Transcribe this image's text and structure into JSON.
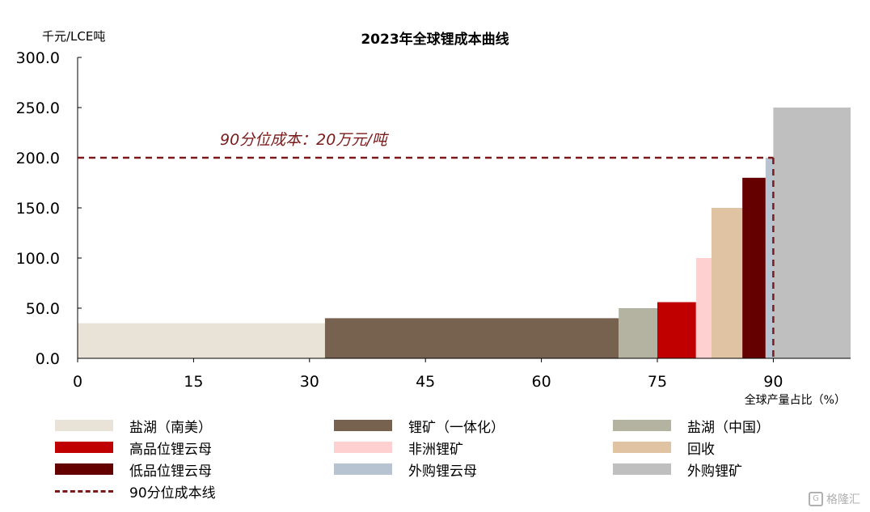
{
  "chart_data": {
    "type": "bar",
    "title": "2023年全球锂成本曲线",
    "ylabel": "千元/LCE吨",
    "xlabel": "全球产量占比（%）",
    "xlim": [
      0,
      100
    ],
    "ylim": [
      0,
      300
    ],
    "x_ticks": [
      "0",
      "15",
      "30",
      "45",
      "60",
      "75",
      "90"
    ],
    "y_ticks": [
      "0.0",
      "50.0",
      "100.0",
      "150.0",
      "200.0",
      "250.0",
      "300.0"
    ],
    "grid": false,
    "legend_position": "bottom",
    "series": [
      {
        "name": "盐湖（南美）",
        "color": "#e8e3d6",
        "x_start": 0,
        "x_end": 32,
        "value": 35
      },
      {
        "name": "锂矿（一体化）",
        "color": "#76624f",
        "x_start": 32,
        "x_end": 70,
        "value": 40
      },
      {
        "name": "盐湖（中国）",
        "color": "#b4b2a1",
        "x_start": 70,
        "x_end": 75,
        "value": 50
      },
      {
        "name": "高品位锂云母",
        "color": "#c00000",
        "x_start": 75,
        "x_end": 80,
        "value": 56
      },
      {
        "name": "非洲锂矿",
        "color": "#ffd0d0",
        "x_start": 80,
        "x_end": 82,
        "value": 100
      },
      {
        "name": "回收",
        "color": "#dfc3a3",
        "x_start": 82,
        "x_end": 86,
        "value": 150
      },
      {
        "name": "低品位锂云母",
        "color": "#650000",
        "x_start": 86,
        "x_end": 89,
        "value": 180
      },
      {
        "name": "外购锂云母",
        "color": "#b7c3d0",
        "x_start": 89,
        "x_end": 90,
        "value": 200
      },
      {
        "name": "外购锂矿",
        "color": "#bfbfbf",
        "x_start": 90,
        "x_end": 100,
        "value": 250
      }
    ],
    "reference_line": {
      "name": "90分位成本线",
      "x": 90,
      "y": 200,
      "color": "#7b1a1a",
      "annotation": "90分位成本：20万元/吨"
    }
  },
  "watermark": {
    "text": "格隆汇",
    "icon": "gelonghui-logo-icon"
  }
}
